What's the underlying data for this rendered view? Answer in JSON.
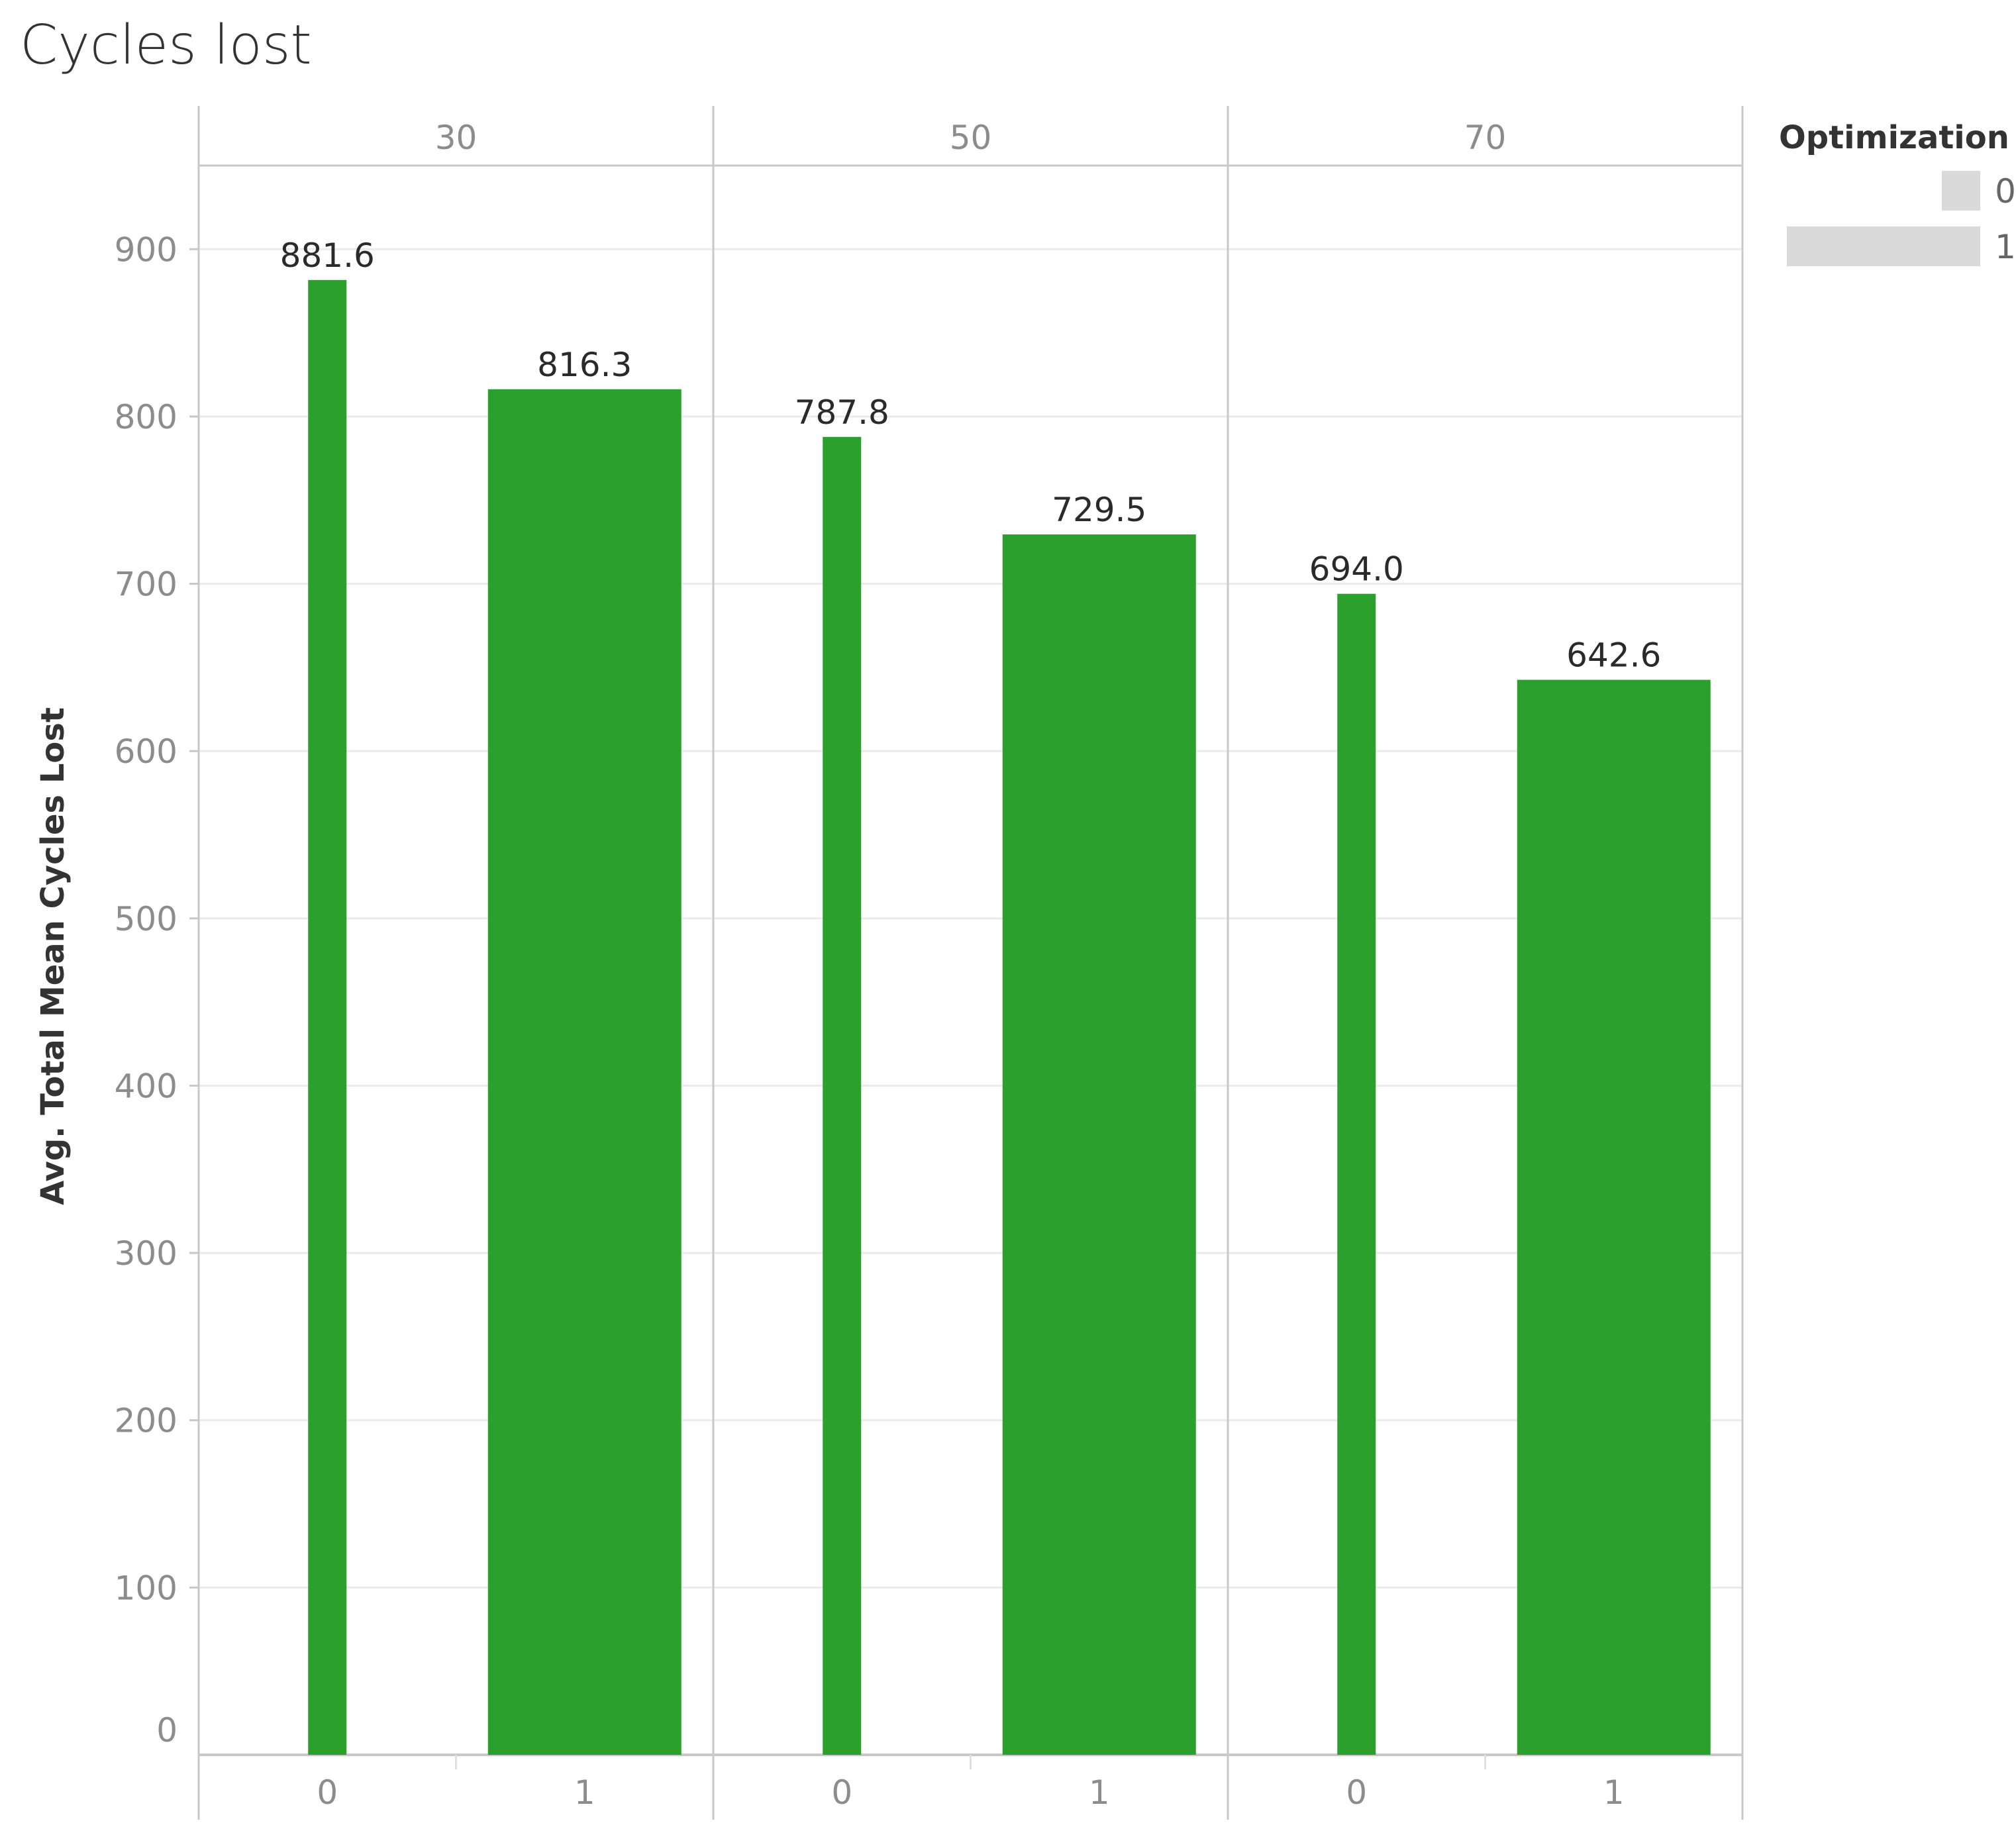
{
  "chart_data": {
    "type": "bar",
    "title": "Cycles lost",
    "ylabel": "Avg. Total Mean Cycles Lost",
    "ylim": [
      0,
      950
    ],
    "yticks": [
      0,
      100,
      200,
      300,
      400,
      500,
      600,
      700,
      800,
      900
    ],
    "panels": [
      "30",
      "50",
      "70"
    ],
    "categories": [
      "0",
      "1"
    ],
    "series": [
      {
        "values": [
          [
            881.6,
            816.3
          ],
          [
            787.8,
            729.5
          ],
          [
            694.0,
            642.6
          ]
        ],
        "labels": [
          [
            "881.6",
            "816.3"
          ],
          [
            "787.8",
            "729.5"
          ],
          [
            "694.0",
            "642.6"
          ]
        ]
      }
    ],
    "bar_color": "#2ca02c",
    "grid": true,
    "legend": {
      "title": "Optimization",
      "position": "top-right",
      "encoding": "size",
      "items": [
        "0",
        "1"
      ],
      "color": "#d9d9d9"
    }
  }
}
